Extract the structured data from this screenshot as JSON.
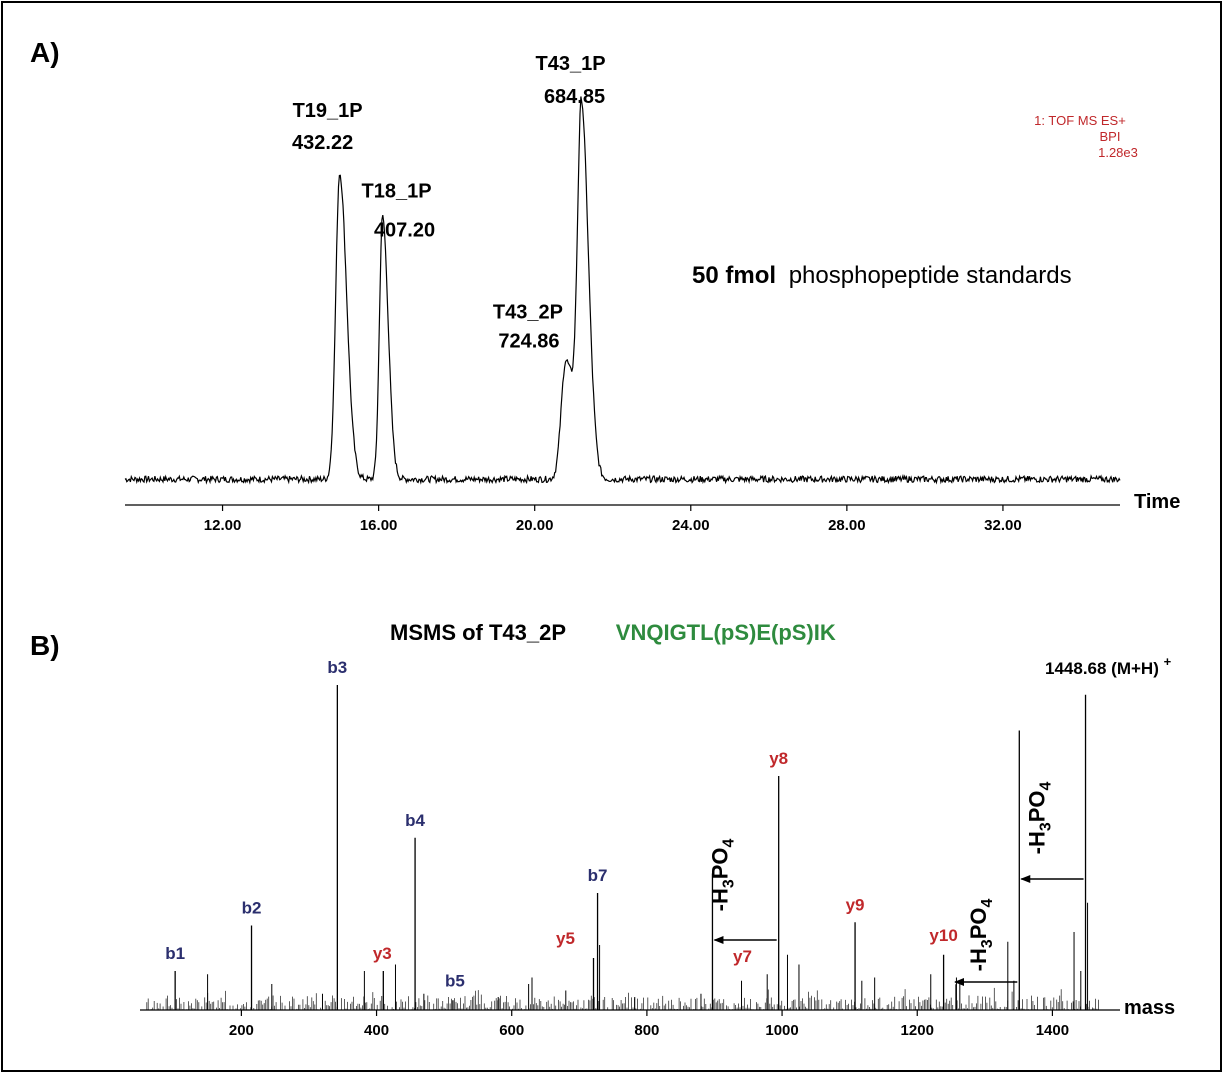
{
  "panel_a": {
    "label": "A)",
    "x_axis_label": "Time",
    "info_lines": [
      "1: TOF MS ES+",
      "BPI",
      "1.28e3"
    ],
    "annotation_bold": "50 fmol",
    "annotation_rest": "phosphopeptide standards"
  },
  "panel_b": {
    "label": "B)",
    "title_black": "MSMS of T43_2P",
    "title_green": "VNQIGTL(pS)E(pS)IK",
    "x_axis_label": "mass",
    "parent_label": "1448.68 (M+H)",
    "parent_sup": "+"
  },
  "colors": {
    "blue": "#2b2f6e",
    "red": "#c0282b",
    "green": "#2e8b3e",
    "info": "#c0282b"
  },
  "chart_data": [
    {
      "type": "line",
      "xlabel": "Time",
      "xlim": [
        9.5,
        35.0
      ],
      "ylim": [
        0,
        100
      ],
      "ticks": [
        12.0,
        16.0,
        20.0,
        24.0,
        28.0,
        32.0
      ],
      "tick_labels": [
        "12.00",
        "16.00",
        "20.00",
        "24.00",
        "28.00",
        "32.00"
      ],
      "baseline": 3,
      "peaks": [
        {
          "x": 15.0,
          "height": 85,
          "width": 0.1,
          "label": "T19_1P",
          "mz": "432.22"
        },
        {
          "x": 16.1,
          "height": 73,
          "width": 0.08,
          "label": "T18_1P",
          "mz": "407.20"
        },
        {
          "x": 20.8,
          "height": 33,
          "width": 0.12,
          "label": "T43_2P",
          "mz": "724.86"
        },
        {
          "x": 21.2,
          "height": 100,
          "width": 0.1,
          "label": "T43_1P",
          "mz": "684.85"
        }
      ]
    },
    {
      "type": "bar",
      "xlabel": "mass",
      "xlim": [
        50,
        1500
      ],
      "ylim": [
        0,
        100
      ],
      "ticks": [
        200,
        400,
        600,
        800,
        1000,
        1200,
        1400
      ],
      "tick_labels": [
        "200",
        "400",
        "600",
        "800",
        "1000",
        "1200",
        "1400"
      ],
      "labeled_peaks": [
        {
          "mz": 102,
          "intensity": 12,
          "label": "b1",
          "color": "blue"
        },
        {
          "mz": 215,
          "intensity": 26,
          "label": "b2",
          "color": "blue"
        },
        {
          "mz": 342,
          "intensity": 100,
          "label": "b3",
          "color": "blue"
        },
        {
          "mz": 410,
          "intensity": 12,
          "label": "y3",
          "color": "red"
        },
        {
          "mz": 457,
          "intensity": 53,
          "label": "b4",
          "color": "blue"
        },
        {
          "mz": 513,
          "intensity": 3,
          "label": "b5",
          "color": "blue"
        },
        {
          "mz": 721,
          "intensity": 16,
          "label": "y5",
          "color": "red"
        },
        {
          "mz": 727,
          "intensity": 36,
          "label": "b7",
          "color": "blue"
        },
        {
          "mz": 897,
          "intensity": 42,
          "label": "",
          "color": "red"
        },
        {
          "mz": 995,
          "intensity": 72,
          "label": "y8",
          "color": "red"
        },
        {
          "mz": 1108,
          "intensity": 27,
          "label": "y9",
          "color": "red"
        },
        {
          "mz": 1239,
          "intensity": 17,
          "label": "y10",
          "color": "red"
        },
        {
          "mz": 1351,
          "intensity": 86,
          "label": "",
          "color": "red"
        },
        {
          "mz": 1449,
          "intensity": 97,
          "label": "",
          "color": "red"
        }
      ],
      "y7_label": "y7",
      "other_peaks": [
        {
          "mz": 150,
          "intensity": 11
        },
        {
          "mz": 245,
          "intensity": 8
        },
        {
          "mz": 320,
          "intensity": 5
        },
        {
          "mz": 382,
          "intensity": 12
        },
        {
          "mz": 428,
          "intensity": 14
        },
        {
          "mz": 470,
          "intensity": 5
        },
        {
          "mz": 580,
          "intensity": 4
        },
        {
          "mz": 625,
          "intensity": 8
        },
        {
          "mz": 630,
          "intensity": 10
        },
        {
          "mz": 680,
          "intensity": 6
        },
        {
          "mz": 730,
          "intensity": 20
        },
        {
          "mz": 782,
          "intensity": 4
        },
        {
          "mz": 880,
          "intensity": 5
        },
        {
          "mz": 940,
          "intensity": 9
        },
        {
          "mz": 978,
          "intensity": 11
        },
        {
          "mz": 1008,
          "intensity": 17
        },
        {
          "mz": 1025,
          "intensity": 14
        },
        {
          "mz": 1118,
          "intensity": 9
        },
        {
          "mz": 1137,
          "intensity": 10
        },
        {
          "mz": 1220,
          "intensity": 11
        },
        {
          "mz": 1258,
          "intensity": 10
        },
        {
          "mz": 1263,
          "intensity": 8
        },
        {
          "mz": 1334,
          "intensity": 21
        },
        {
          "mz": 1343,
          "intensity": 9
        },
        {
          "mz": 1432,
          "intensity": 24
        },
        {
          "mz": 1452,
          "intensity": 33
        },
        {
          "mz": 1442,
          "intensity": 12
        }
      ],
      "neutral_loss_arrows": [
        {
          "from_mz": 995,
          "to_mz": 897,
          "label": "-H3PO4"
        },
        {
          "from_mz": 1351,
          "to_mz": 1253,
          "label": "-H3PO4"
        },
        {
          "from_mz": 1449,
          "to_mz": 1351,
          "label": "-H3PO4"
        }
      ]
    }
  ]
}
